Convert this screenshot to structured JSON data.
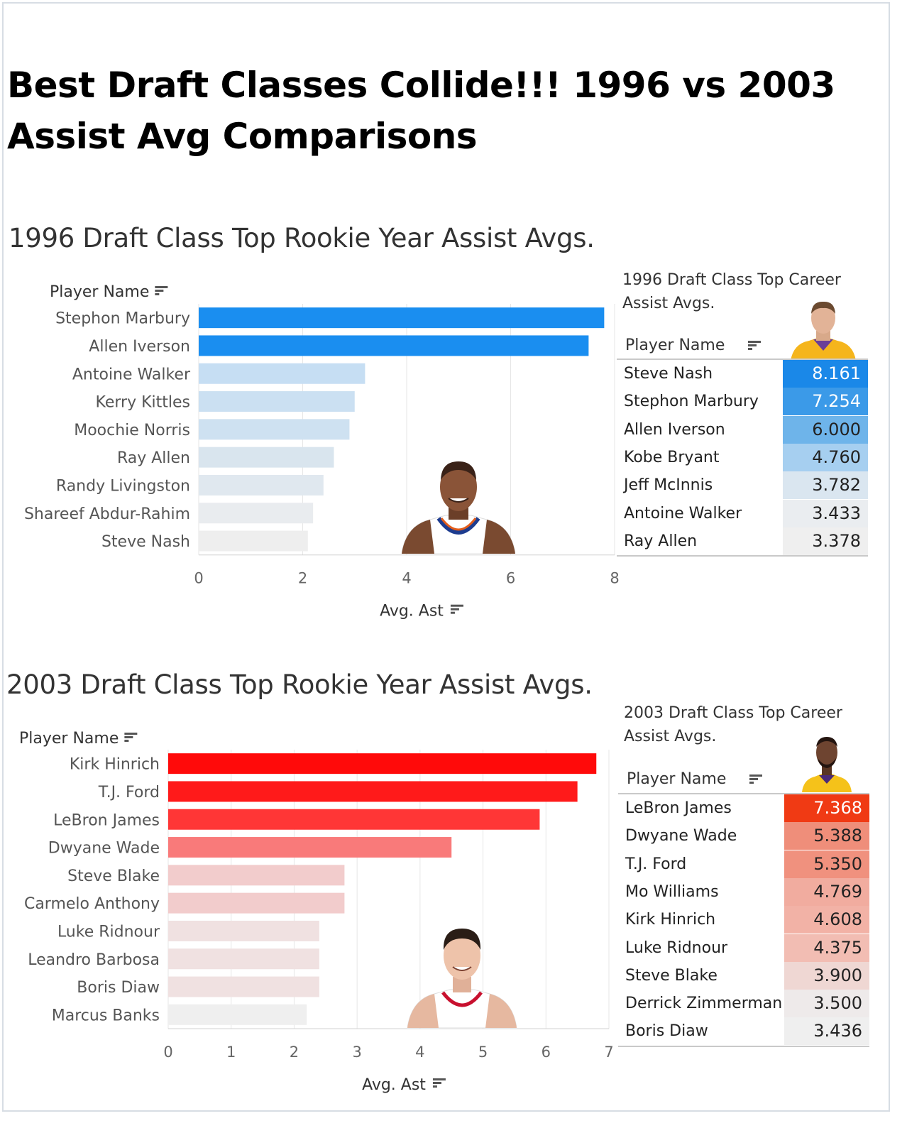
{
  "title": "Best Draft Classes Collide!!! 1996 vs 2003 Assist Avg Comparisons",
  "colors": {
    "blue": "#1a8ef0",
    "red": "#ff0a0a"
  },
  "chart_data": [
    {
      "type": "bar",
      "orientation": "horizontal",
      "title": "1996 Draft Class Top Rookie Year Assist Avgs.",
      "categories_header": "Player Name",
      "xlabel": "Avg. Ast",
      "xlim": [
        0,
        8
      ],
      "ticks": [
        0,
        2,
        4,
        6,
        8
      ],
      "grid": true,
      "categories": [
        "Stephon Marbury",
        "Allen Iverson",
        "Antoine Walker",
        "Kerry Kittles",
        "Moochie Norris",
        "Ray Allen",
        "Randy Livingston",
        "Shareef Abdur-Rahim",
        "Steve Nash"
      ],
      "values": [
        7.8,
        7.5,
        3.2,
        3.0,
        2.9,
        2.6,
        2.4,
        2.2,
        2.1
      ],
      "colors": [
        "#1a8ef0",
        "#1a8ef0",
        "#c6def3",
        "#cbe0f2",
        "#cee1f1",
        "#d9e5ee",
        "#e0e8ef",
        "#e9ecef",
        "#eeeeee"
      ]
    },
    {
      "type": "table",
      "title": "1996 Draft Class Top Career Assist Avgs.",
      "column_header": "Player Name",
      "rows": [
        {
          "name": "Steve Nash",
          "value": "8.161",
          "color": "#1a88e8",
          "text_color": "#ffffff"
        },
        {
          "name": "Stephon Marbury",
          "value": "7.254",
          "color": "#3b9ae8",
          "text_color": "#ffffff"
        },
        {
          "name": "Allen Iverson",
          "value": "6.000",
          "color": "#6eb4ea",
          "text_color": "#222222"
        },
        {
          "name": "Kobe Bryant",
          "value": "4.760",
          "color": "#a6cff0",
          "text_color": "#222222"
        },
        {
          "name": "Jeff McInnis",
          "value": "3.782",
          "color": "#dae6f0",
          "text_color": "#222222"
        },
        {
          "name": "Antoine Walker",
          "value": "3.433",
          "color": "#eaedf0",
          "text_color": "#222222"
        },
        {
          "name": "Ray Allen",
          "value": "3.378",
          "color": "#efefef",
          "text_color": "#222222"
        }
      ]
    },
    {
      "type": "bar",
      "orientation": "horizontal",
      "title": "2003 Draft Class Top Rookie Year Assist Avgs.",
      "categories_header": "Player Name",
      "xlabel": "Avg. Ast",
      "xlim": [
        0,
        7
      ],
      "ticks": [
        0,
        1,
        2,
        3,
        4,
        5,
        6,
        7
      ],
      "grid": true,
      "categories": [
        "Kirk Hinrich",
        "T.J. Ford",
        "LeBron James",
        "Dwyane Wade",
        "Steve Blake",
        "Carmelo Anthony",
        "Luke Ridnour",
        "Leandro Barbosa",
        "Boris Diaw",
        "Marcus Banks"
      ],
      "values": [
        6.8,
        6.5,
        5.9,
        4.5,
        2.8,
        2.8,
        2.4,
        2.4,
        2.4,
        2.2
      ],
      "colors": [
        "#ff0a0a",
        "#ff1a1a",
        "#ff3636",
        "#f97a7a",
        "#f2cccc",
        "#f2cccc",
        "#f0e1e1",
        "#f0e1e1",
        "#f0e1e1",
        "#efefef"
      ]
    },
    {
      "type": "table",
      "title": "2003 Draft Class Top Career Assist Avgs.",
      "column_header": "Player Name",
      "rows": [
        {
          "name": "LeBron James",
          "value": "7.368",
          "color": "#f03a14",
          "text_color": "#ffffff"
        },
        {
          "name": "Dwyane Wade",
          "value": "5.388",
          "color": "#ef8e7a",
          "text_color": "#222222"
        },
        {
          "name": "T.J. Ford",
          "value": "5.350",
          "color": "#f0917e",
          "text_color": "#222222"
        },
        {
          "name": "Mo Williams",
          "value": "4.769",
          "color": "#f1ac9f",
          "text_color": "#222222"
        },
        {
          "name": "Kirk Hinrich",
          "value": "4.608",
          "color": "#f2b2a6",
          "text_color": "#222222"
        },
        {
          "name": "Luke Ridnour",
          "value": "4.375",
          "color": "#f2bdb3",
          "text_color": "#222222"
        },
        {
          "name": "Steve Blake",
          "value": "3.900",
          "color": "#efd7d3",
          "text_color": "#222222"
        },
        {
          "name": "Derrick Zimmerman",
          "value": "3.500",
          "color": "#eeeaea",
          "text_color": "#222222"
        },
        {
          "name": "Boris Diaw",
          "value": "3.436",
          "color": "#efefef",
          "text_color": "#222222"
        }
      ]
    }
  ]
}
